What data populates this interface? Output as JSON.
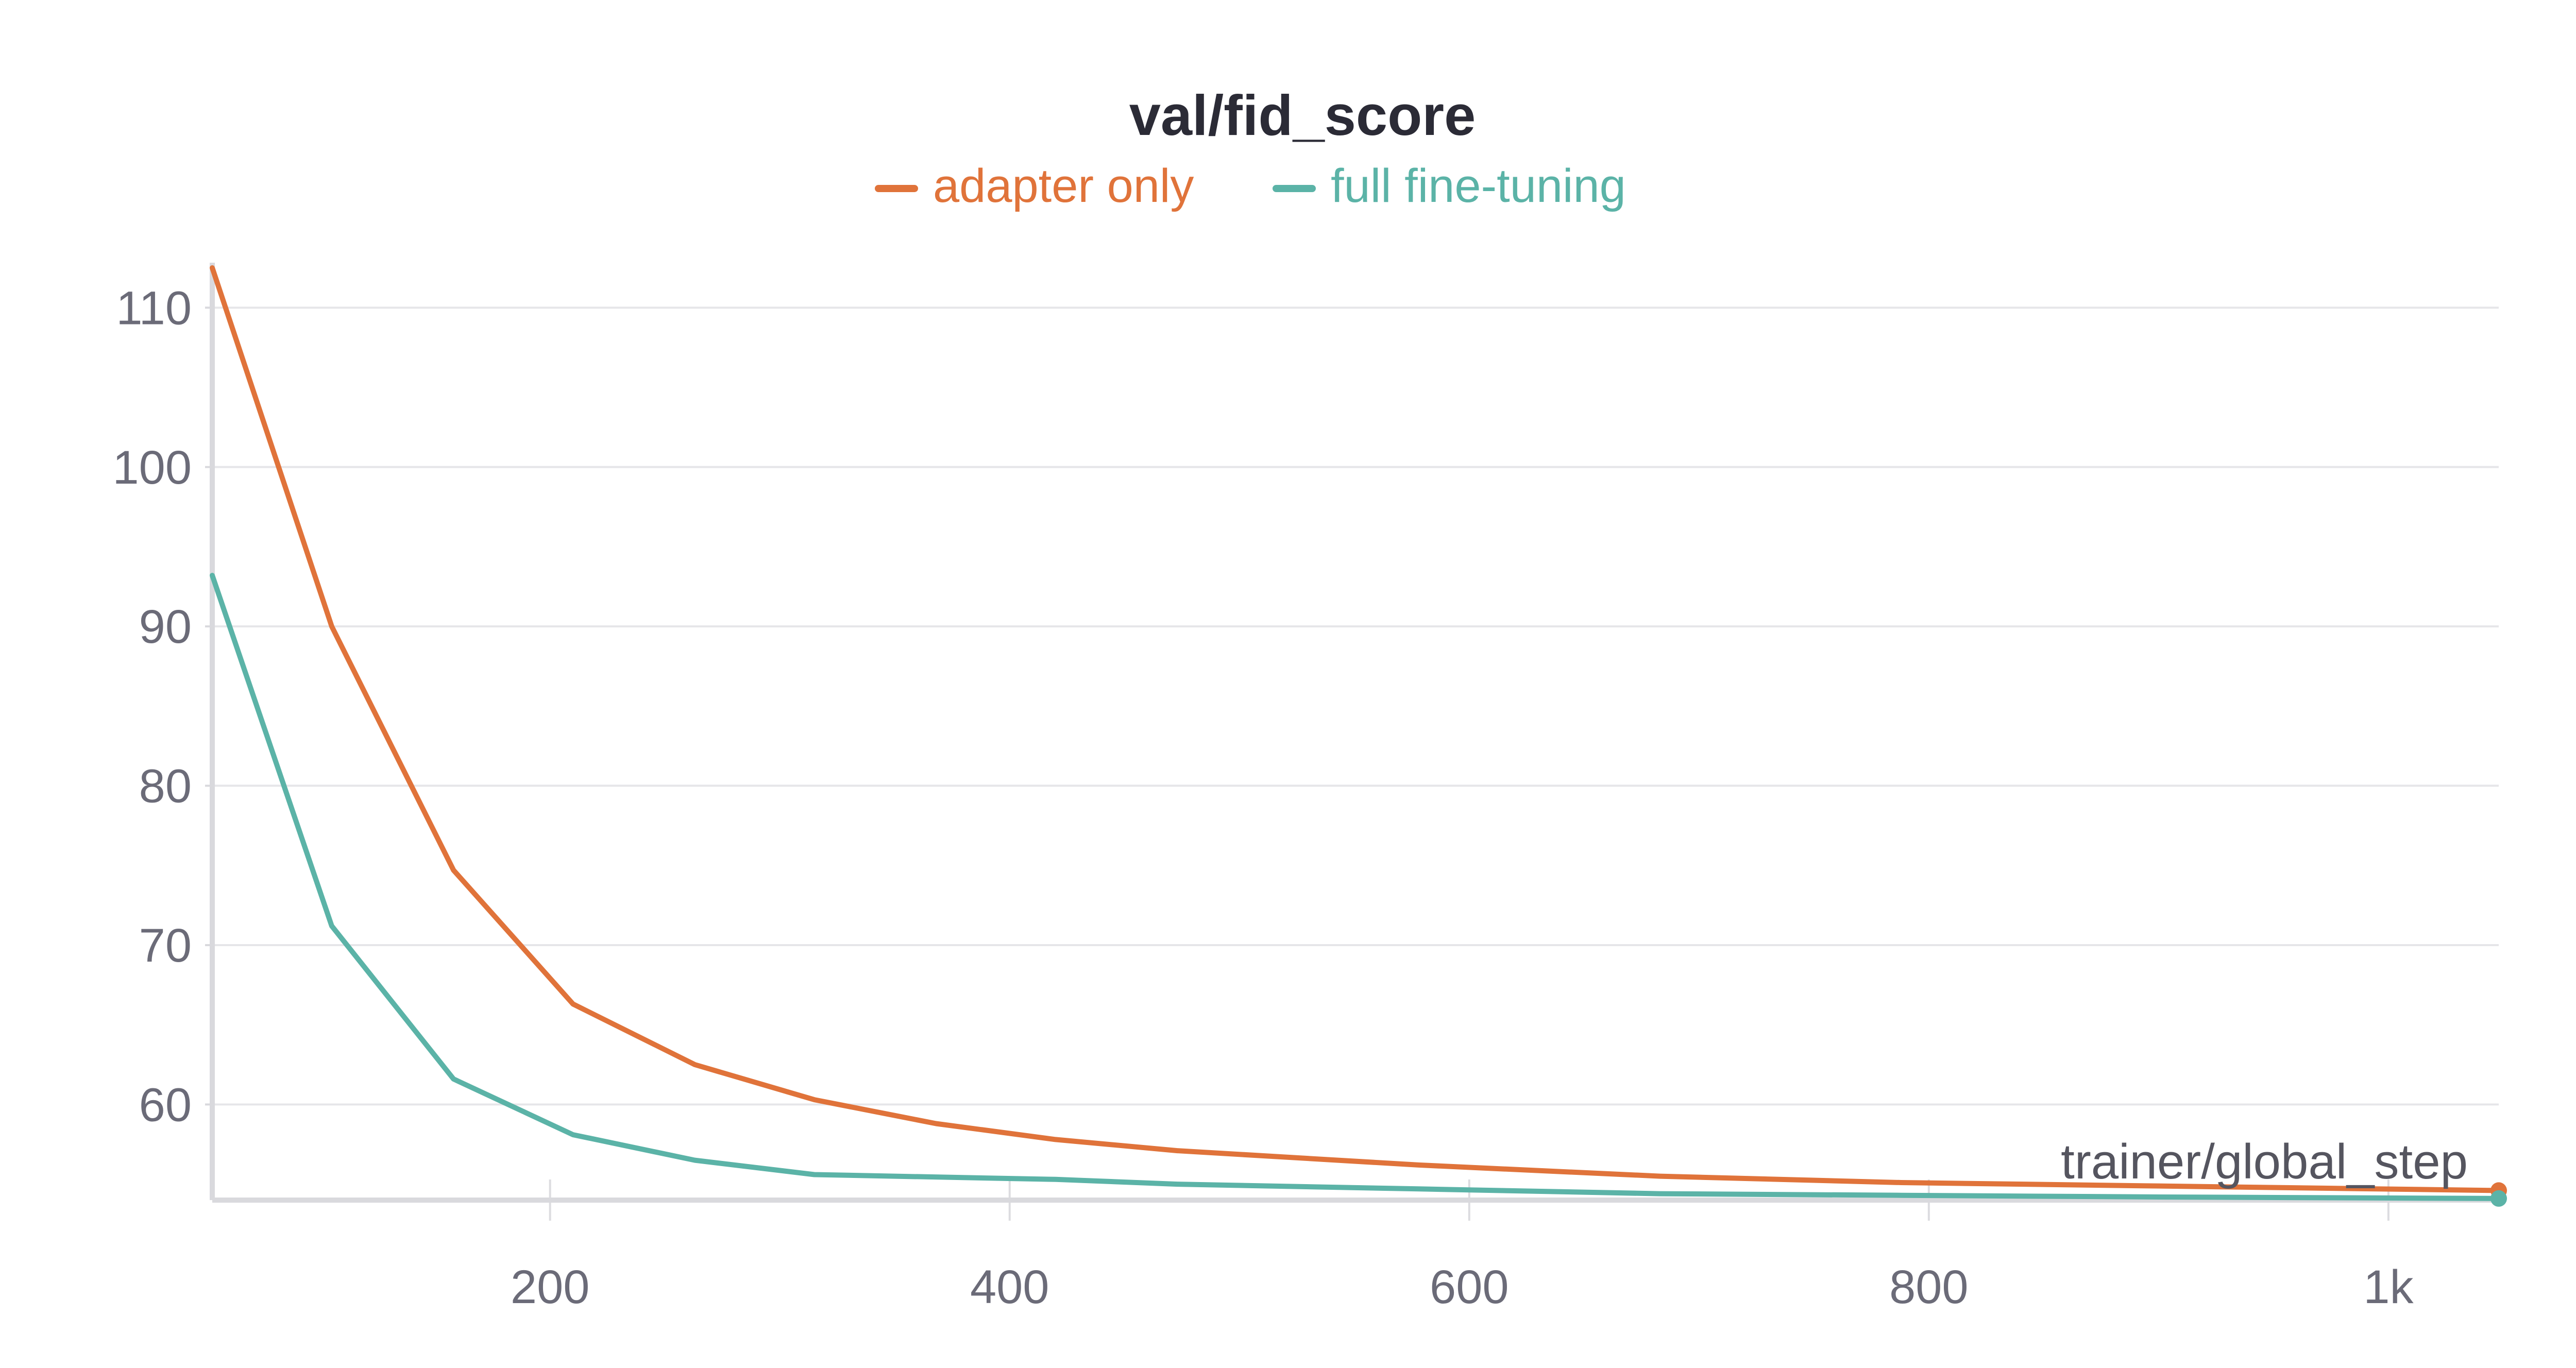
{
  "chart_data": {
    "type": "line",
    "title": "val/fid_score",
    "xlabel": "trainer/global_step",
    "ylabel": "",
    "xlim": [
      53,
      1048
    ],
    "ylim": [
      54,
      112.5
    ],
    "x_ticks": [
      200,
      400,
      600,
      800,
      1000
    ],
    "x_tick_labels": [
      "200",
      "400",
      "600",
      "800",
      "1k"
    ],
    "y_ticks": [
      60,
      70,
      80,
      90,
      100,
      110
    ],
    "y_tick_labels": [
      "60",
      "70",
      "80",
      "90",
      "100",
      "110"
    ],
    "grid": true,
    "legend_position": "top-center",
    "series": [
      {
        "name": "adapter only",
        "color": "#e0733a",
        "points": [
          [
            53,
            112.5
          ],
          [
            105,
            90.0
          ],
          [
            158,
            74.7
          ],
          [
            210,
            66.3
          ],
          [
            263,
            62.5
          ],
          [
            315,
            60.3
          ],
          [
            368,
            58.8
          ],
          [
            420,
            57.8
          ],
          [
            473,
            57.1
          ],
          [
            578,
            56.2
          ],
          [
            683,
            55.5
          ],
          [
            788,
            55.1
          ],
          [
            893,
            54.9
          ],
          [
            1048,
            54.6
          ]
        ]
      },
      {
        "name": "full fine-tuning",
        "color": "#5bb3a7",
        "points": [
          [
            53,
            93.2
          ],
          [
            105,
            71.2
          ],
          [
            158,
            61.6
          ],
          [
            210,
            58.1
          ],
          [
            263,
            56.5
          ],
          [
            315,
            55.6
          ],
          [
            420,
            55.3
          ],
          [
            473,
            55.0
          ],
          [
            578,
            54.7
          ],
          [
            683,
            54.4
          ],
          [
            788,
            54.3
          ],
          [
            893,
            54.2
          ],
          [
            1048,
            54.1
          ]
        ]
      }
    ]
  }
}
